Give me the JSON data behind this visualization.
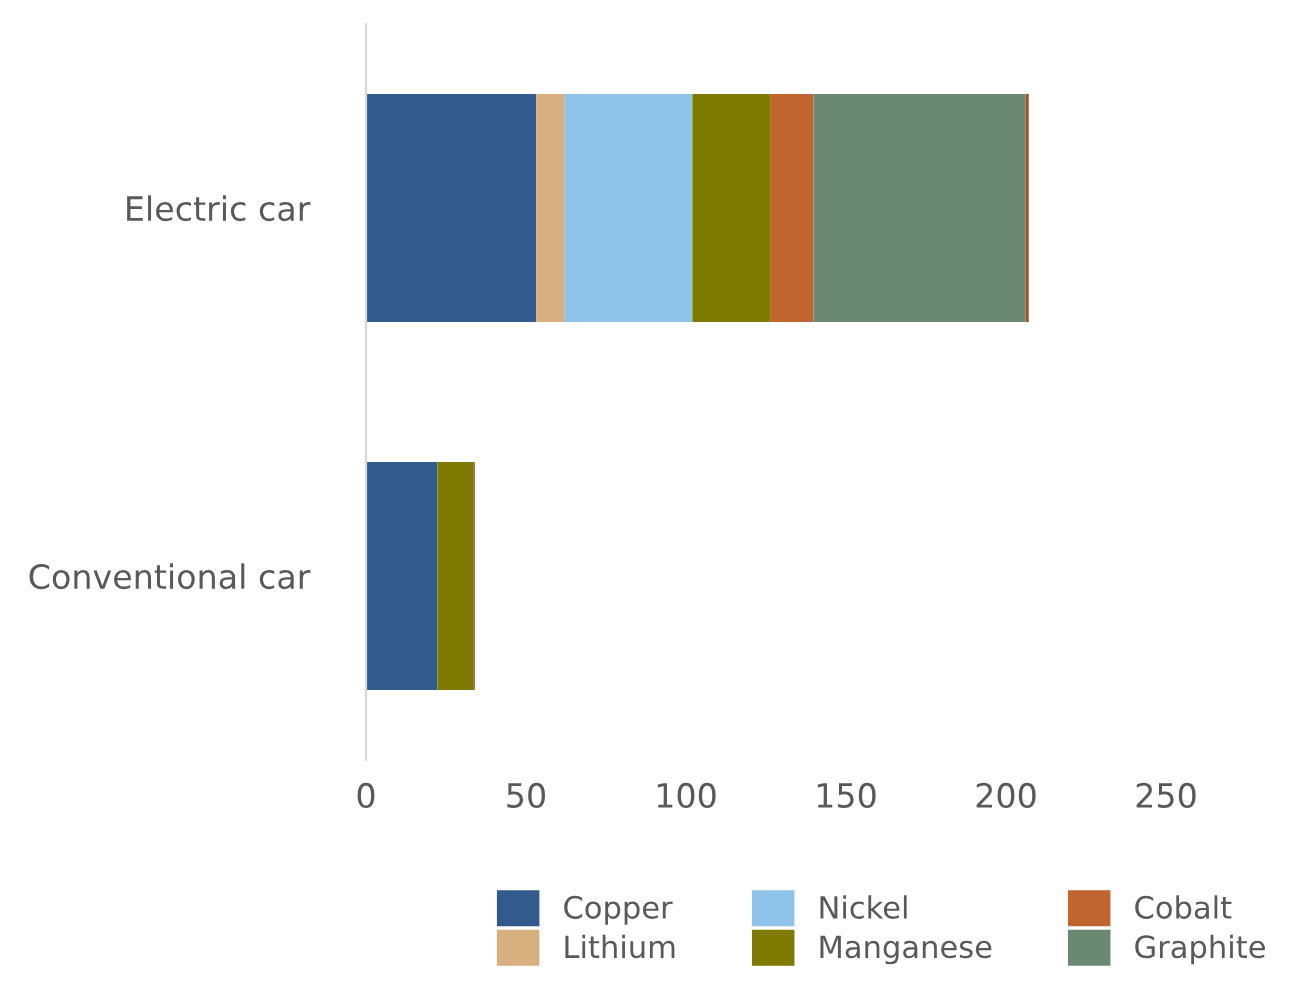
{
  "chart_data": {
    "type": "bar",
    "orientation": "horizontal",
    "stacked": true,
    "categories": [
      "Electric car",
      "Conventional car"
    ],
    "series": [
      {
        "name": "Copper",
        "color": "#335a8c",
        "values": [
          53.2,
          22.3
        ]
      },
      {
        "name": "Lithium",
        "color": "#d6b07e",
        "values": [
          8.9,
          0
        ]
      },
      {
        "name": "Nickel",
        "color": "#8fc3e9",
        "values": [
          39.9,
          0
        ]
      },
      {
        "name": "Manganese",
        "color": "#7f7a00",
        "values": [
          24.5,
          11.2
        ]
      },
      {
        "name": "Cobalt",
        "color": "#c0652f",
        "values": [
          13.3,
          0
        ]
      },
      {
        "name": "Graphite",
        "color": "#6b8873",
        "values": [
          66.3,
          0
        ]
      },
      {
        "color": "#a0502a",
        "values": [
          1,
          0.5
        ]
      }
    ],
    "xlim": [
      0,
      250
    ],
    "xticks": [
      0,
      50,
      100,
      150,
      200,
      250
    ],
    "grid": false,
    "legend": "bottom"
  }
}
